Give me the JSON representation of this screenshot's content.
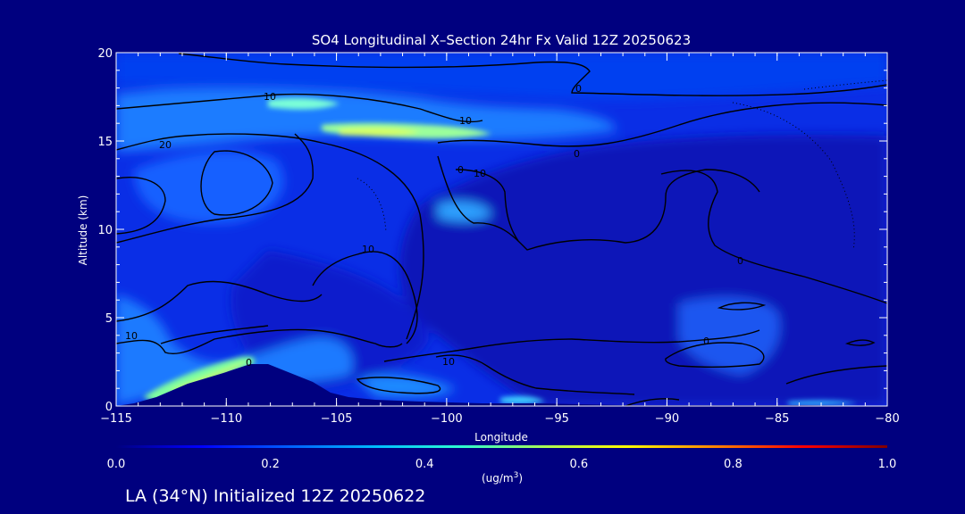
{
  "chart_data": {
    "type": "heatmap",
    "title": "SO4 Longitudinal X–Section 24hr  Fx Valid 12Z 20250623",
    "xlabel": "Longitude",
    "ylabel": "Altitude (km)",
    "xlim": [
      -115,
      -80
    ],
    "ylim": [
      0,
      20
    ],
    "x_ticks": [
      -115,
      -110,
      -105,
      -100,
      -95,
      -90,
      -85,
      -80
    ],
    "x_tick_labels": [
      "−115",
      "−110",
      "−105",
      "−100",
      "−95",
      "−90",
      "−85",
      "−80"
    ],
    "y_ticks": [
      0,
      5,
      10,
      15,
      20
    ],
    "y_tick_labels": [
      "0",
      "5",
      "10",
      "15",
      "20"
    ],
    "colorbar": {
      "min": 0.0,
      "max": 1.0,
      "ticks": [
        "0.0",
        "0.2",
        "0.4",
        "0.6",
        "0.8",
        "1.0"
      ],
      "units_label": "(ug/m",
      "units_sup": "3",
      "units_suffix": ")",
      "colormap": [
        "#00007f",
        "#0000ff",
        "#007fff",
        "#00ffff",
        "#7fff7f",
        "#ffff00",
        "#ff7f00",
        "#ff0000",
        "#7f0000"
      ]
    },
    "contour_labels": [
      "10",
      "10",
      "20",
      "0",
      "10",
      "10",
      "0",
      "0",
      "10",
      "10",
      "0",
      "0",
      "0"
    ],
    "grid": false
  },
  "footer": {
    "location": "LA (34°N) Initialized 12Z 20250622"
  }
}
